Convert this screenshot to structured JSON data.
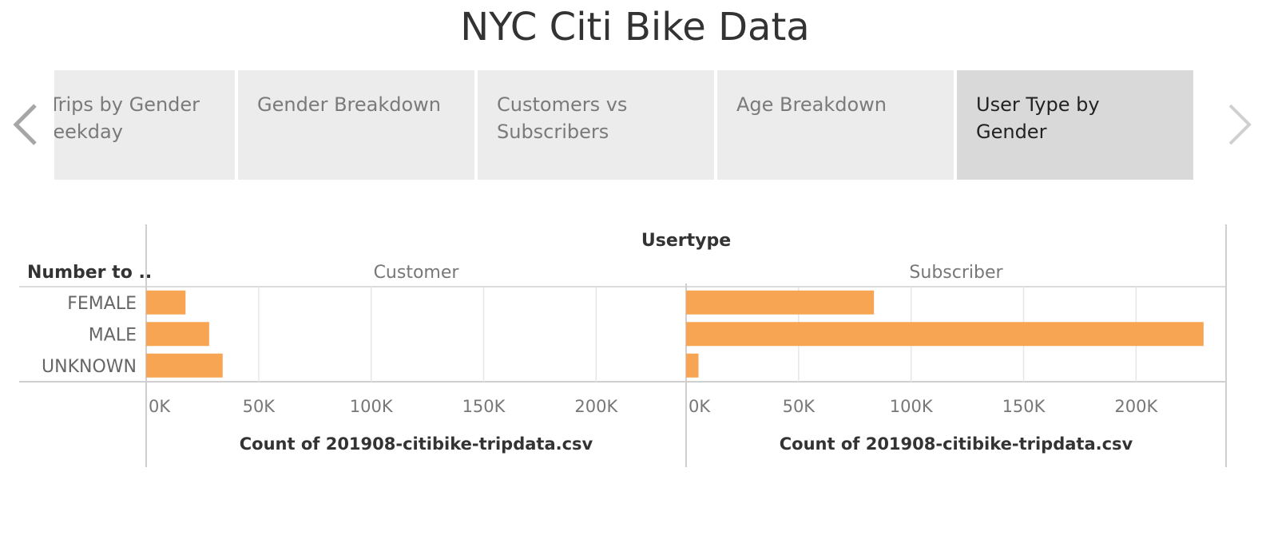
{
  "title": "NYC Citi Bike Data",
  "nav": {
    "prev_icon": "chevron-left-icon",
    "next_icon": "chevron-right-icon"
  },
  "tabs": [
    {
      "label": "r Trips by Gender Weekday",
      "active": false
    },
    {
      "label": "Gender Breakdown",
      "active": false
    },
    {
      "label": "Customers vs Subscribers",
      "active": false
    },
    {
      "label": "Age Breakdown",
      "active": false
    },
    {
      "label": "User Type by Gender",
      "active": true
    }
  ],
  "colors": {
    "bar": "#f8a553",
    "grid": "#e6e6e6",
    "axis": "#cfcfcf",
    "tab": "#ececec",
    "tab_active": "#d9d9d9"
  },
  "chart_data": {
    "type": "bar",
    "orientation": "horizontal",
    "column_header": "Usertype",
    "row_header": "Number to ..",
    "categories": [
      "FEMALE",
      "MALE",
      "UNKNOWN"
    ],
    "panels": [
      {
        "name": "Customer",
        "values": [
          17500,
          28000,
          34000
        ],
        "xlabel": "Count of 201908-citibike-tripdata.csv"
      },
      {
        "name": "Subscriber",
        "values": [
          83500,
          230000,
          5500
        ],
        "xlabel": "Count of 201908-citibike-tripdata.csv"
      }
    ],
    "xlim": [
      0,
      240000
    ],
    "xticks": [
      0,
      50000,
      100000,
      150000,
      200000
    ],
    "xtick_labels": [
      "0K",
      "50K",
      "100K",
      "150K",
      "200K"
    ],
    "grid": true
  }
}
